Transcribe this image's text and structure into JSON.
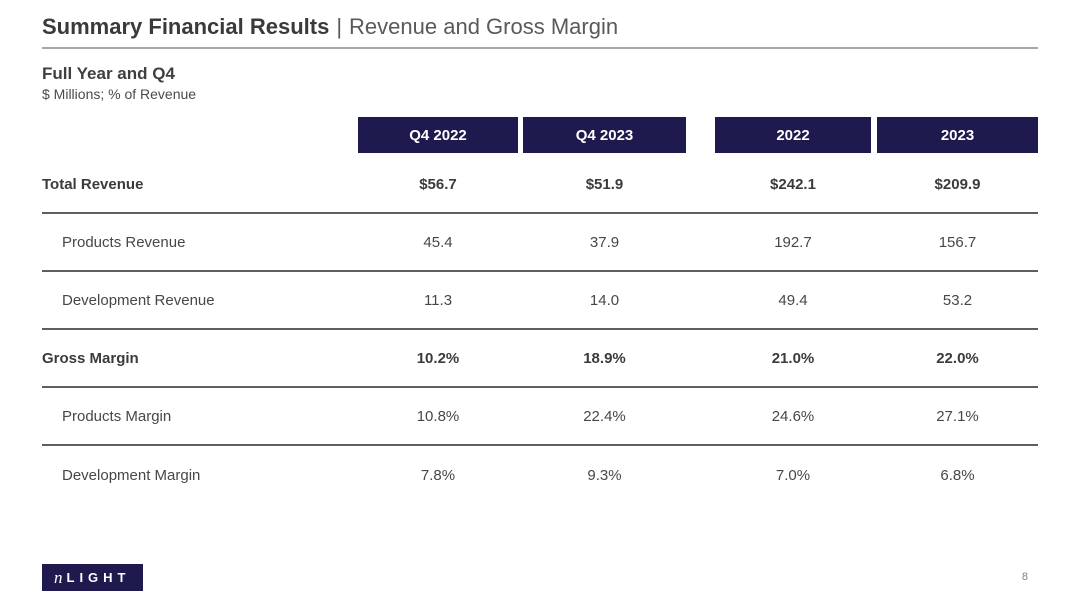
{
  "header": {
    "title_bold": "Summary Financial Results",
    "title_separator": "|",
    "title_rest": "Revenue and Gross Margin"
  },
  "subtitle": {
    "heading": "Full Year and Q4",
    "note": "$ Millions; % of Revenue"
  },
  "table": {
    "columns": [
      "Q4 2022",
      "Q4 2023",
      "2022",
      "2023"
    ],
    "rows": [
      {
        "label": "Total Revenue",
        "values": [
          "$56.7",
          "$51.9",
          "$242.1",
          "$209.9"
        ],
        "bold": true,
        "indent": false
      },
      {
        "label": "Products Revenue",
        "values": [
          "45.4",
          "37.9",
          "192.7",
          "156.7"
        ],
        "bold": false,
        "indent": true
      },
      {
        "label": "Development Revenue",
        "values": [
          "11.3",
          "14.0",
          "49.4",
          "53.2"
        ],
        "bold": false,
        "indent": true
      },
      {
        "label": "Gross Margin",
        "values": [
          "10.2%",
          "18.9%",
          "21.0%",
          "22.0%"
        ],
        "bold": true,
        "indent": false
      },
      {
        "label": "Products Margin",
        "values": [
          "10.8%",
          "22.4%",
          "24.6%",
          "27.1%"
        ],
        "bold": false,
        "indent": true
      },
      {
        "label": "Development Margin",
        "values": [
          "7.8%",
          "9.3%",
          "7.0%",
          "6.8%"
        ],
        "bold": false,
        "indent": true
      }
    ]
  },
  "footer": {
    "logo_prefix": "n",
    "logo_text": "LIGHT",
    "page_number": "8"
  },
  "colors": {
    "accent_navy": "#1f1a4e",
    "title_text": "#3a3a3a",
    "body_text": "#474747",
    "rule_light": "#a8a8a8",
    "rule_dark": "#5f5f5f"
  }
}
